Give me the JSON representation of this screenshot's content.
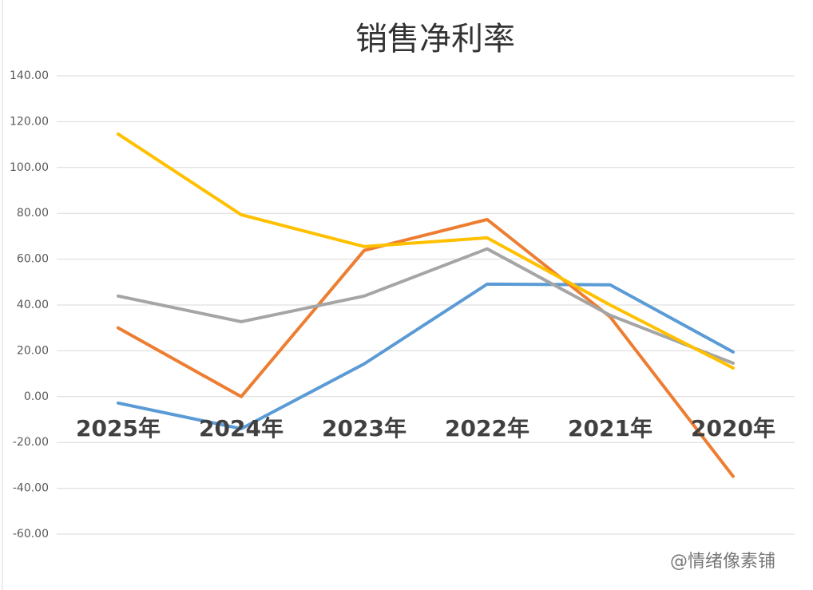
{
  "chart_data": {
    "type": "line",
    "title": "销售净利率",
    "categories": [
      "2025年",
      "2024年",
      "2023年",
      "2022年",
      "2021年",
      "2020年"
    ],
    "series": [
      {
        "color": "#5b9bd5",
        "values": [
          -2.8,
          -14,
          14.3,
          49.1,
          48.8,
          19.5
        ]
      },
      {
        "color": "#ed7d31",
        "values": [
          30,
          0,
          63.8,
          77.3,
          34.8,
          -34.8
        ]
      },
      {
        "color": "#a5a5a5",
        "values": [
          43.9,
          32.7,
          43.9,
          64.5,
          35.5,
          14.6
        ]
      },
      {
        "color": "#ffc000",
        "values": [
          114.6,
          79.4,
          65.5,
          69.3,
          40,
          12.5
        ]
      }
    ],
    "ylim": [
      -60,
      140
    ],
    "yticks": [
      {
        "value": -60,
        "label": "-60.00"
      },
      {
        "value": -40,
        "label": "-40.00"
      },
      {
        "value": -20,
        "label": "-20.00"
      },
      {
        "value": 0,
        "label": "0.00"
      },
      {
        "value": 20,
        "label": "20.00"
      },
      {
        "value": 40,
        "label": "40.00"
      },
      {
        "value": 60,
        "label": "60.00"
      },
      {
        "value": 80,
        "label": "80.00"
      },
      {
        "value": 100,
        "label": "100.00"
      },
      {
        "value": 120,
        "label": "120.00"
      },
      {
        "value": 140,
        "label": "140.00"
      }
    ],
    "grid": true,
    "watermark": "@情绪像素铺"
  }
}
